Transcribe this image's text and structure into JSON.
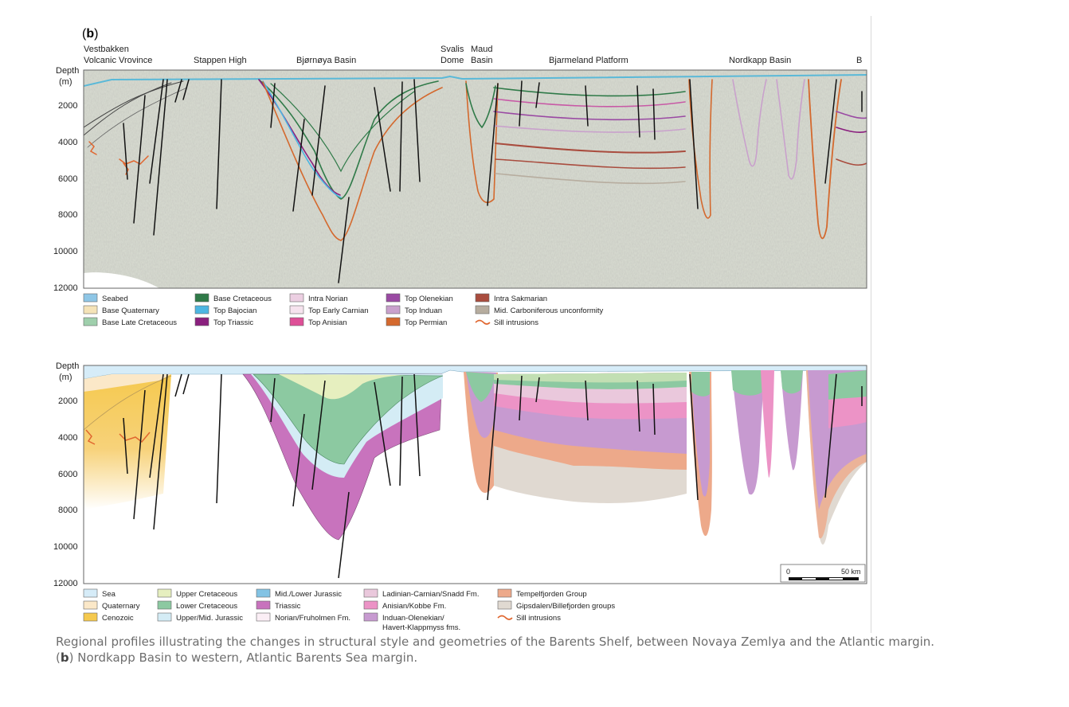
{
  "panel_label": "b",
  "top_section": {
    "region_labels": [
      {
        "lines": [
          "Vestbakken",
          "Volcanic Vrovince"
        ]
      },
      {
        "lines": [
          "Stappen High"
        ]
      },
      {
        "lines": [
          "Bjørnøya Basin"
        ]
      },
      {
        "lines": [
          "Svalis",
          "Dome"
        ]
      },
      {
        "lines": [
          "Maud",
          "Basin"
        ]
      },
      {
        "lines": [
          "Bjarmeland Platform"
        ]
      },
      {
        "lines": [
          "Nordkapp Basin"
        ]
      },
      {
        "lines": [
          "B"
        ]
      }
    ],
    "depth_axis": {
      "title": [
        "Depth",
        "(m)"
      ],
      "ticks": [
        "2000",
        "4000",
        "6000",
        "8000",
        "10000",
        "12000"
      ]
    },
    "legend": [
      {
        "label": "Seabed",
        "color": "#8ec6e6",
        "kind": "box"
      },
      {
        "label": "Base Quaternary",
        "color": "#f5e3b8",
        "kind": "box"
      },
      {
        "label": "Base Late Cretaceous",
        "color": "#9fcfac",
        "kind": "box"
      },
      {
        "label": "Base Cretaceous",
        "color": "#2f7a48",
        "kind": "box"
      },
      {
        "label": "Top Bajocian",
        "color": "#4db6e2",
        "kind": "box"
      },
      {
        "label": "Top Triassic",
        "color": "#8a1f7e",
        "kind": "box"
      },
      {
        "label": "Intra Norian",
        "color": "#eccfe2",
        "kind": "box"
      },
      {
        "label": "Top Early Carnian",
        "color": "#f6e3ee",
        "kind": "box"
      },
      {
        "label": "Top Anisian",
        "color": "#de4f97",
        "kind": "box"
      },
      {
        "label": "Top Olenekian",
        "color": "#9a4aa3",
        "kind": "box"
      },
      {
        "label": "Top Induan",
        "color": "#c9a1cc",
        "kind": "box"
      },
      {
        "label": "Top Permian",
        "color": "#d4692e",
        "kind": "box"
      },
      {
        "label": "Intra Sakmarian",
        "color": "#a94c3e",
        "kind": "box"
      },
      {
        "label": "Mid. Carboniferous unconformity",
        "color": "#b7ad9f",
        "kind": "box"
      },
      {
        "label": "Sill intrusions",
        "color": "#e0662f",
        "kind": "line"
      }
    ]
  },
  "bottom_section": {
    "depth_axis": {
      "title": [
        "Depth",
        "(m)"
      ],
      "ticks": [
        "2000",
        "4000",
        "6000",
        "8000",
        "10000",
        "12000"
      ]
    },
    "scale_bar": {
      "start": "0",
      "end": "50 km"
    },
    "legend": [
      {
        "label": "Sea",
        "color": "#d6ecf8",
        "kind": "box"
      },
      {
        "label": "Quaternary",
        "color": "#fbe8c8",
        "kind": "box"
      },
      {
        "label": "Cenozoic",
        "color": "#f5c94e",
        "kind": "box"
      },
      {
        "label": "Upper Cretaceous",
        "color": "#e6efbf",
        "kind": "box"
      },
      {
        "label": "Lower Cretaceous",
        "color": "#8cc9a1",
        "kind": "box"
      },
      {
        "label": "Upper/Mid. Jurassic",
        "color": "#d4ecf5",
        "kind": "box"
      },
      {
        "label": "Mid./Lower Jurassic",
        "color": "#83c3e4",
        "kind": "box"
      },
      {
        "label": "Triassic",
        "color": "#c873bd",
        "kind": "box"
      },
      {
        "label": "Norian/Fruholmen Fm.",
        "color": "#fbeef5",
        "kind": "box"
      },
      {
        "label": "Ladinian-Carnian/Snadd Fm.",
        "color": "#eac8dc",
        "kind": "box"
      },
      {
        "label": "Anisian/Kobbe Fm.",
        "color": "#ec93c6",
        "kind": "box"
      },
      {
        "label": "Induan-Olenekian/",
        "label2": "Havert-Klappmyss fms.",
        "color": "#c79ad0",
        "kind": "box"
      },
      {
        "label": "Tempelfjorden Group",
        "color": "#eda98a",
        "kind": "box"
      },
      {
        "label": "Gipsdalen/Billefjorden groups",
        "color": "#e0d9d1",
        "kind": "box"
      },
      {
        "label": "Sill intrusions",
        "color": "#e0662f",
        "kind": "line"
      }
    ]
  },
  "caption": {
    "line1": "Regional profiles illustrating the changes in structural style and geometries of the Barents Shelf, between Novaya Zemlya and the Atlantic margin.",
    "paren_open": "(",
    "bold": "b",
    "rest": ") Nordkapp Basin to western, Atlantic Barents Sea margin."
  }
}
